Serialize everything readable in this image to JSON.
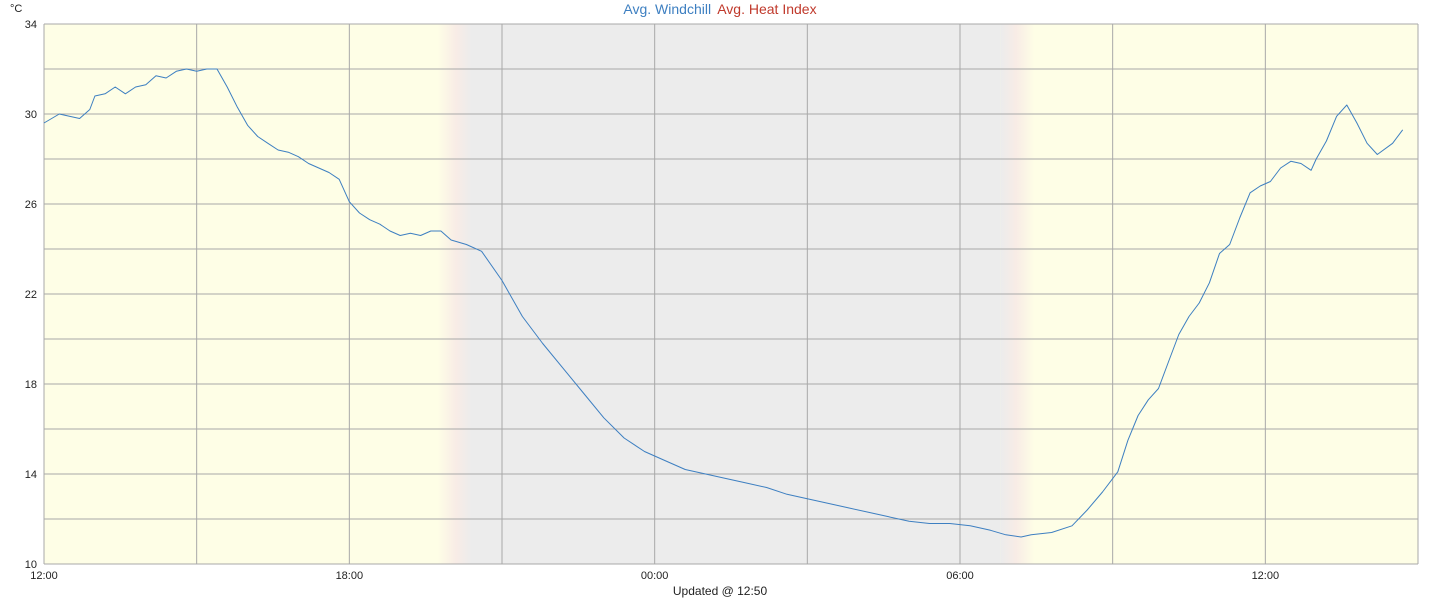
{
  "chart_data": {
    "type": "line",
    "title_parts": [
      {
        "text": "Avg. Windchill",
        "color": "#3d7fc1"
      },
      {
        "text": "Avg. Heat Index",
        "color": "#c0392b"
      }
    ],
    "ylabel": "°C",
    "footer": "Updated @ 12:50",
    "ylim": [
      10,
      34
    ],
    "y_ticks": [
      "10",
      "14",
      "18",
      "22",
      "26",
      "30",
      "34"
    ],
    "y_tick_values": [
      10,
      14,
      18,
      22,
      26,
      30,
      34
    ],
    "x_range_hours": [
      0,
      27
    ],
    "x_ticks": [
      {
        "label": "12:00",
        "hour": 0
      },
      {
        "label": "18:00",
        "hour": 6
      },
      {
        "label": "00:00",
        "hour": 12
      },
      {
        "label": "06:00",
        "hour": 18
      },
      {
        "label": "12:00",
        "hour": 24
      }
    ],
    "night_band_hours": [
      8.4,
      18.8
    ],
    "grid": true,
    "colors": {
      "day_background": "#fefee6",
      "night_background": "#ececec",
      "grid": "#a8a8a8",
      "line": "#3d7fc1"
    },
    "series": [
      {
        "name": "Avg. Windchill",
        "color": "#3d7fc1",
        "points": [
          [
            0.0,
            29.6
          ],
          [
            0.3,
            30.0
          ],
          [
            0.5,
            29.9
          ],
          [
            0.7,
            29.8
          ],
          [
            0.9,
            30.2
          ],
          [
            1.0,
            30.8
          ],
          [
            1.2,
            30.9
          ],
          [
            1.4,
            31.2
          ],
          [
            1.6,
            30.9
          ],
          [
            1.8,
            31.2
          ],
          [
            2.0,
            31.3
          ],
          [
            2.2,
            31.7
          ],
          [
            2.4,
            31.6
          ],
          [
            2.6,
            31.9
          ],
          [
            2.8,
            32.0
          ],
          [
            3.0,
            31.9
          ],
          [
            3.2,
            32.0
          ],
          [
            3.4,
            32.0
          ],
          [
            3.6,
            31.2
          ],
          [
            3.8,
            30.3
          ],
          [
            4.0,
            29.5
          ],
          [
            4.2,
            29.0
          ],
          [
            4.4,
            28.7
          ],
          [
            4.6,
            28.4
          ],
          [
            4.8,
            28.3
          ],
          [
            5.0,
            28.1
          ],
          [
            5.2,
            27.8
          ],
          [
            5.4,
            27.6
          ],
          [
            5.6,
            27.4
          ],
          [
            5.8,
            27.1
          ],
          [
            6.0,
            26.1
          ],
          [
            6.2,
            25.6
          ],
          [
            6.4,
            25.3
          ],
          [
            6.6,
            25.1
          ],
          [
            6.8,
            24.8
          ],
          [
            7.0,
            24.6
          ],
          [
            7.2,
            24.7
          ],
          [
            7.4,
            24.6
          ],
          [
            7.6,
            24.8
          ],
          [
            7.8,
            24.8
          ],
          [
            8.0,
            24.4
          ],
          [
            8.3,
            24.2
          ],
          [
            8.6,
            23.9
          ],
          [
            9.0,
            22.6
          ],
          [
            9.4,
            21.0
          ],
          [
            9.8,
            19.8
          ],
          [
            10.2,
            18.7
          ],
          [
            10.6,
            17.6
          ],
          [
            11.0,
            16.5
          ],
          [
            11.4,
            15.6
          ],
          [
            11.8,
            15.0
          ],
          [
            12.2,
            14.6
          ],
          [
            12.6,
            14.2
          ],
          [
            13.0,
            14.0
          ],
          [
            13.4,
            13.8
          ],
          [
            13.8,
            13.6
          ],
          [
            14.2,
            13.4
          ],
          [
            14.6,
            13.1
          ],
          [
            15.0,
            12.9
          ],
          [
            15.4,
            12.7
          ],
          [
            15.8,
            12.5
          ],
          [
            16.2,
            12.3
          ],
          [
            16.6,
            12.1
          ],
          [
            17.0,
            11.9
          ],
          [
            17.4,
            11.8
          ],
          [
            17.8,
            11.8
          ],
          [
            18.2,
            11.7
          ],
          [
            18.6,
            11.5
          ],
          [
            18.9,
            11.3
          ],
          [
            19.2,
            11.2
          ],
          [
            19.4,
            11.3
          ],
          [
            19.8,
            11.4
          ],
          [
            20.2,
            11.7
          ],
          [
            20.5,
            12.4
          ],
          [
            20.8,
            13.2
          ],
          [
            21.1,
            14.1
          ],
          [
            21.3,
            15.5
          ],
          [
            21.5,
            16.6
          ],
          [
            21.7,
            17.3
          ],
          [
            21.9,
            17.8
          ],
          [
            22.1,
            19.0
          ],
          [
            22.3,
            20.2
          ],
          [
            22.5,
            21.0
          ],
          [
            22.7,
            21.6
          ],
          [
            22.9,
            22.5
          ],
          [
            23.1,
            23.8
          ],
          [
            23.3,
            24.2
          ],
          [
            23.5,
            25.4
          ],
          [
            23.7,
            26.5
          ],
          [
            23.9,
            26.8
          ],
          [
            24.1,
            27.0
          ],
          [
            24.3,
            27.6
          ],
          [
            24.5,
            27.9
          ],
          [
            24.7,
            27.8
          ],
          [
            24.9,
            27.5
          ],
          [
            25.0,
            28.0
          ],
          [
            25.2,
            28.8
          ],
          [
            25.4,
            29.9
          ],
          [
            25.6,
            30.4
          ],
          [
            25.8,
            29.6
          ],
          [
            26.0,
            28.7
          ],
          [
            26.2,
            28.2
          ],
          [
            26.5,
            28.7
          ],
          [
            26.7,
            29.3
          ]
        ]
      }
    ]
  }
}
